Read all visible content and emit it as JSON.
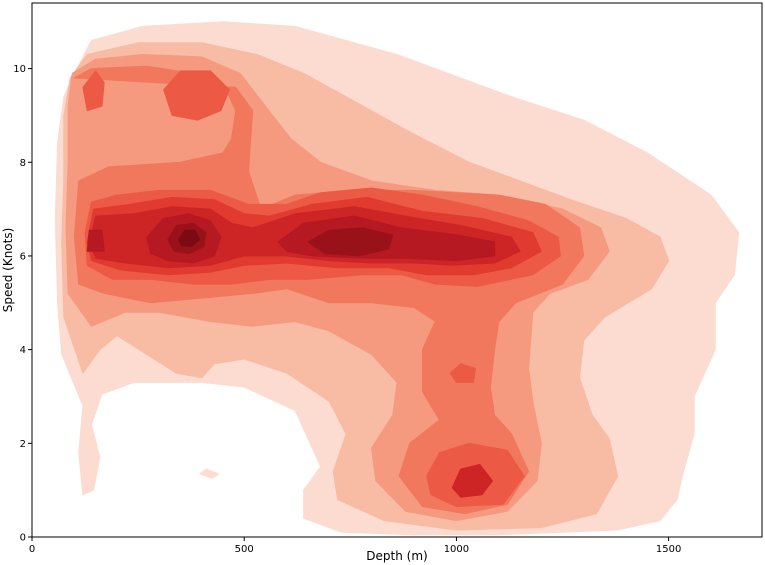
{
  "chart_data": {
    "type": "heatmap",
    "subtype": "kde-contour-filled",
    "xlabel": "Depth (m)",
    "ylabel": "Speed (Knots)",
    "xlim": [
      0,
      1720
    ],
    "ylim": [
      0,
      11.4
    ],
    "xticks": [
      0,
      500,
      1000,
      1500
    ],
    "yticks": [
      0,
      2,
      4,
      6,
      8,
      10
    ],
    "grid": false,
    "colormap": "Reds",
    "levels": 10,
    "level_colors": [
      "#fcdcd0",
      "#f8bba3",
      "#f59a7f",
      "#f1785d",
      "#ec5a45",
      "#e13a2f",
      "#cd2426",
      "#b61921",
      "#9a1219",
      "#7c0a12"
    ],
    "density_peaks": [
      {
        "depth": 370,
        "speed": 6.3,
        "relative_density": 1.0
      },
      {
        "depth": 760,
        "speed": 6.2,
        "relative_density": 0.9
      },
      {
        "depth": 1000,
        "speed": 6.2,
        "relative_density": 0.8
      },
      {
        "depth": 145,
        "speed": 6.3,
        "relative_density": 0.78
      },
      {
        "depth": 1030,
        "speed": 1.1,
        "relative_density": 0.6
      },
      {
        "depth": 380,
        "speed": 9.4,
        "relative_density": 0.5
      },
      {
        "depth": 145,
        "speed": 9.4,
        "relative_density": 0.42
      },
      {
        "depth": 1020,
        "speed": 3.5,
        "relative_density": 0.45
      },
      {
        "depth": 240,
        "speed": 8.5,
        "relative_density": 0.3
      }
    ]
  }
}
